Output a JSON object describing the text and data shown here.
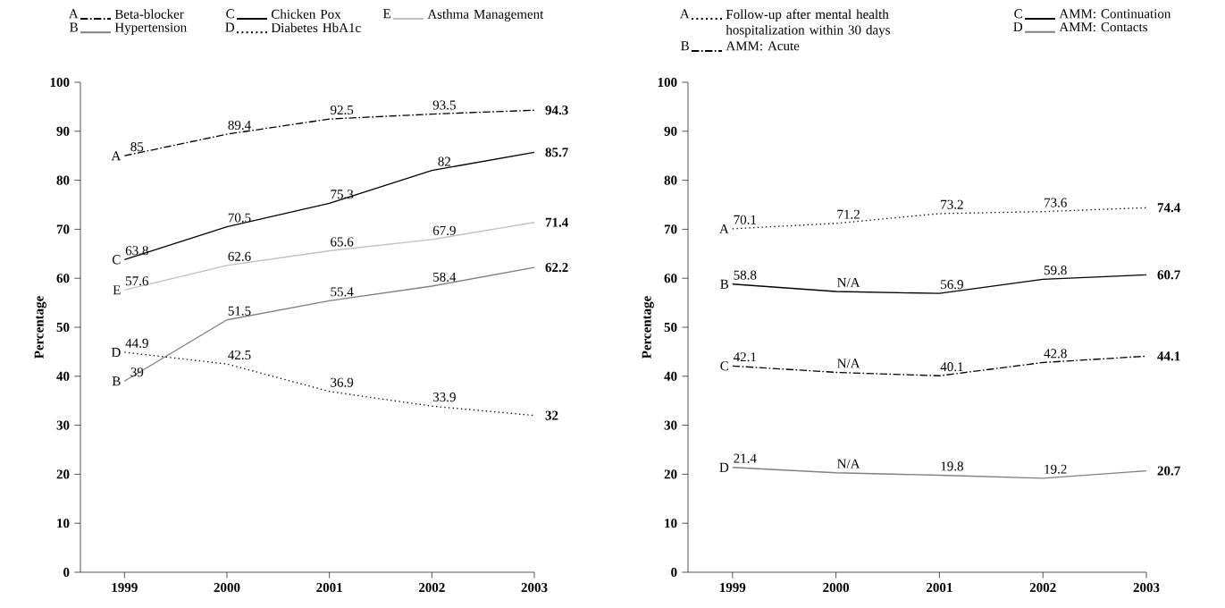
{
  "chart_data": [
    {
      "type": "line",
      "ylabel": "Percentage",
      "x": [
        1999,
        2000,
        2001,
        2002,
        2003
      ],
      "xlim": [
        1998.57,
        2003
      ],
      "xticks": [
        1999,
        2000,
        2001,
        2002,
        2003
      ],
      "ylim": [
        0,
        100
      ],
      "yticks": [
        0,
        10,
        20,
        30,
        40,
        50,
        60,
        70,
        80,
        90,
        100
      ],
      "legend": "top",
      "data_labels": true,
      "series": [
        {
          "name": "Beta-blocker",
          "color": "#000000",
          "line_style": "dashed",
          "values": [
            85,
            89.4,
            92.5,
            93.5,
            94.3
          ]
        },
        {
          "name": "Hypertension",
          "color": "#808080",
          "line_style": "solid",
          "values": [
            39,
            51.5,
            55.4,
            58.4,
            62.2
          ]
        },
        {
          "name": "Chicken Pox",
          "color": "#000000",
          "line_style": "solid",
          "values": [
            63.8,
            70.5,
            75.3,
            82,
            85.7
          ]
        },
        {
          "name": "Diabetes HbA1c",
          "color": "#000000",
          "line_style": "dotted",
          "values": [
            44.9,
            42.5,
            36.9,
            33.9,
            32
          ]
        },
        {
          "name": "Asthma Management",
          "color": "#c0c0c0",
          "line_style": "solid",
          "values": [
            57.6,
            62.6,
            65.6,
            67.9,
            71.4
          ]
        }
      ],
      "annotations": [
        "A",
        "B",
        "C",
        "D",
        "E",
        "A",
        "B",
        "C",
        "D",
        "E"
      ]
    },
    {
      "type": "line",
      "ylabel": "Percentage",
      "x": [
        1999,
        2000,
        2001,
        2002,
        2003
      ],
      "xlim": [
        1998.57,
        2003
      ],
      "xticks": [
        1999,
        2000,
        2001,
        2002,
        2003
      ],
      "ylim": [
        0,
        100
      ],
      "yticks": [
        0,
        10,
        20,
        30,
        40,
        50,
        60,
        70,
        80,
        90,
        100
      ],
      "legend": "top",
      "series": [
        {
          "name": "Follow-up after mental health hospitalization within 30 days",
          "color": "#000000",
          "line_style": "dotted",
          "values": [
            70.1,
            71.2,
            73.2,
            73.6,
            74.4
          ],
          "value_labels": [
            "70.1",
            "71.2",
            "73.2",
            "73.6",
            "74.4"
          ]
        },
        {
          "name": "AMM: Acute",
          "color": "#000000",
          "line_style": "dashed",
          "values": [
            42.1,
            40.8,
            40.1,
            42.8,
            44.1
          ],
          "value_labels": [
            "42.1",
            "N/A",
            "40.1",
            "42.8",
            "44.1"
          ]
        },
        {
          "name": "AMM: Continuation",
          "color": "#000000",
          "line_style": "solid",
          "values": [
            58.8,
            57.3,
            56.9,
            59.8,
            60.7
          ],
          "value_labels": [
            "58.8",
            "N/A",
            "56.9",
            "59.8",
            "60.7"
          ]
        },
        {
          "name": "AMM: Contacts",
          "color": "#808080",
          "line_style": "solid",
          "values": [
            21.4,
            20.3,
            19.8,
            19.2,
            20.7
          ],
          "value_labels": [
            "21.4",
            "N/A",
            "19.8",
            "19.2",
            "20.7"
          ]
        }
      ],
      "annotations": [
        "A",
        "B",
        "C",
        "D",
        "A",
        "C",
        "B",
        "D"
      ]
    }
  ]
}
